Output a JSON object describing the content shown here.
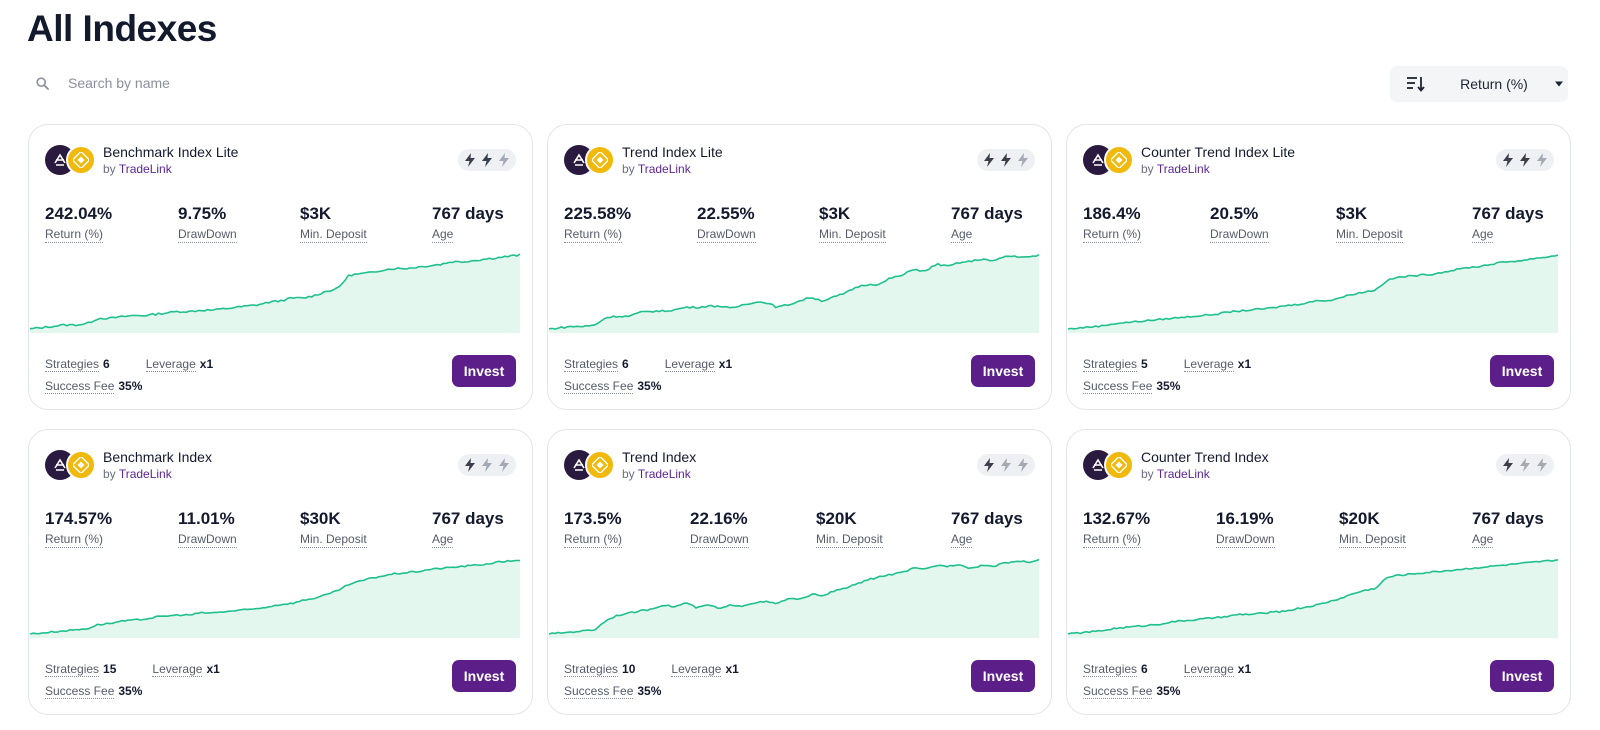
{
  "page": {
    "title": "All Indexes"
  },
  "search": {
    "placeholder": "Search by name",
    "value": ""
  },
  "sort": {
    "label": "Return (%)"
  },
  "colors": {
    "accent": "#5c1f8a",
    "chart_line": "#1fc08e",
    "chart_fill": "#e4f7ef",
    "bolt_active": "#3a3f4c",
    "bolt_inactive": "#a4a9b4"
  },
  "labels": {
    "return": "Return (%)",
    "drawdown": "DrawDown",
    "min_deposit": "Min. Deposit",
    "age": "Age",
    "strategies": "Strategies",
    "leverage": "Leverage",
    "success_fee": "Success Fee",
    "invest": "Invest",
    "by": "by"
  },
  "cards": [
    {
      "name": "Benchmark Index Lite",
      "provider": "TradeLink",
      "return": "242.04%",
      "drawdown": "9.75%",
      "min_deposit": "$3K",
      "age": "767 days",
      "strategies": "6",
      "leverage": "x1",
      "success_fee": "35%",
      "risk_level": 2,
      "trend": [
        0,
        1,
        2,
        3,
        3,
        4,
        8,
        8,
        9,
        10,
        10,
        11,
        12,
        13,
        13,
        14,
        14,
        15,
        16,
        17,
        18,
        20,
        21,
        23,
        23,
        25,
        28,
        30,
        40,
        41,
        42,
        44,
        45,
        45,
        46,
        47,
        48,
        50,
        50,
        51,
        52,
        53,
        54,
        55
      ]
    },
    {
      "name": "Trend Index Lite",
      "provider": "TradeLink",
      "return": "225.58%",
      "drawdown": "22.55%",
      "min_deposit": "$3K",
      "age": "767 days",
      "strategies": "6",
      "leverage": "x1",
      "success_fee": "35%",
      "risk_level": 2,
      "trend": [
        0,
        1,
        2,
        2,
        3,
        9,
        10,
        10,
        13,
        14,
        14,
        15,
        17,
        17,
        18,
        18,
        16,
        19,
        21,
        21,
        17,
        19,
        22,
        25,
        22,
        25,
        28,
        33,
        35,
        35,
        40,
        42,
        47,
        45,
        51,
        49,
        52,
        53,
        55,
        53,
        57,
        57,
        56,
        58
      ]
    },
    {
      "name": "Counter Trend Index Lite",
      "provider": "TradeLink",
      "return": "186.4%",
      "drawdown": "20.5%",
      "min_deposit": "$3K",
      "age": "767 days",
      "strategies": "5",
      "leverage": "x1",
      "success_fee": "35%",
      "risk_level": 2,
      "trend": [
        0,
        1,
        2,
        3,
        5,
        6,
        7,
        8,
        9,
        10,
        11,
        12,
        13,
        14,
        16,
        17,
        18,
        19,
        20,
        22,
        23,
        25,
        27,
        27,
        30,
        33,
        35,
        37,
        46,
        49,
        50,
        51,
        52,
        54,
        56,
        58,
        59,
        61,
        63,
        64,
        65,
        67,
        68,
        70
      ]
    },
    {
      "name": "Benchmark Index",
      "provider": "TradeLink",
      "return": "174.57%",
      "drawdown": "11.01%",
      "min_deposit": "$30K",
      "age": "767 days",
      "strategies": "15",
      "leverage": "x1",
      "success_fee": "35%",
      "risk_level": 1,
      "trend": [
        0,
        1,
        2,
        3,
        4,
        5,
        9,
        10,
        12,
        13,
        14,
        16,
        17,
        18,
        18,
        20,
        20,
        21,
        22,
        23,
        24,
        26,
        28,
        29,
        32,
        34,
        37,
        41,
        47,
        50,
        53,
        55,
        57,
        58,
        59,
        61,
        62,
        63,
        64,
        65,
        66,
        68,
        69,
        70
      ]
    },
    {
      "name": "Trend Index",
      "provider": "TradeLink",
      "return": "173.5%",
      "drawdown": "22.16%",
      "min_deposit": "$20K",
      "age": "767 days",
      "strategies": "10",
      "leverage": "x1",
      "success_fee": "35%",
      "risk_level": 1,
      "trend": [
        0,
        1,
        2,
        3,
        4,
        13,
        18,
        20,
        22,
        24,
        28,
        26,
        30,
        25,
        28,
        24,
        28,
        27,
        30,
        31,
        29,
        34,
        33,
        38,
        37,
        41,
        44,
        48,
        52,
        55,
        57,
        59,
        63,
        62,
        66,
        65,
        67,
        63,
        66,
        65,
        68,
        70,
        69,
        71
      ]
    },
    {
      "name": "Counter Trend Index",
      "provider": "TradeLink",
      "return": "132.67%",
      "drawdown": "16.19%",
      "min_deposit": "$20K",
      "age": "767 days",
      "strategies": "6",
      "leverage": "x1",
      "success_fee": "35%",
      "risk_level": 1,
      "trend": [
        0,
        1,
        2,
        3,
        5,
        6,
        7,
        8,
        9,
        11,
        12,
        13,
        14,
        15,
        16,
        18,
        18,
        19,
        20,
        21,
        23,
        25,
        27,
        30,
        33,
        37,
        40,
        42,
        52,
        54,
        55,
        56,
        57,
        58,
        59,
        60,
        61,
        62,
        63,
        64,
        65,
        66,
        67,
        68
      ]
    }
  ]
}
